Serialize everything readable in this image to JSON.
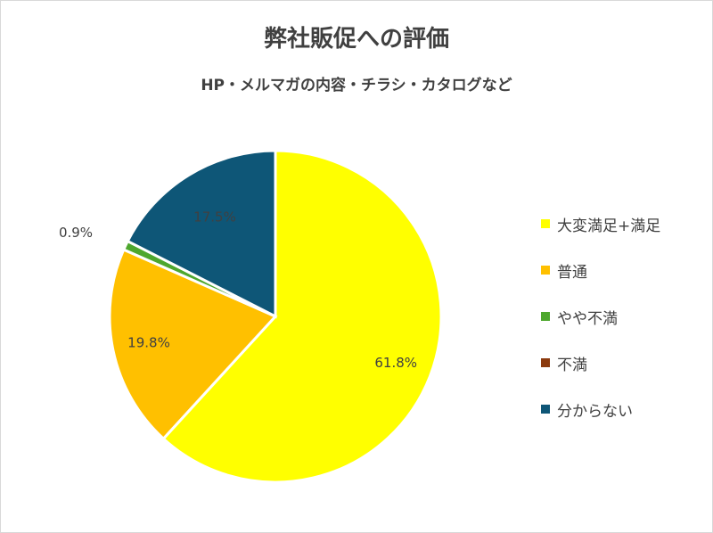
{
  "chart_data": {
    "type": "pie",
    "title": "弊社販促への評価",
    "subtitle": "HP・メルマガの内容・チラシ・カタログなど",
    "legend_position": "right",
    "slices": [
      {
        "label": "大変満足+満足",
        "value": 61.8,
        "value_label": "61.8%",
        "color": "#FFFF00"
      },
      {
        "label": "普通",
        "value": 19.8,
        "value_label": "19.8%",
        "color": "#FFC000"
      },
      {
        "label": "やや不満",
        "value": 0.9,
        "value_label": "0.9%",
        "color": "#4EA72E"
      },
      {
        "label": "不満",
        "value": 0.0,
        "value_label": "",
        "color": "#8B3A0E"
      },
      {
        "label": "分からない",
        "value": 17.5,
        "value_label": "17.5%",
        "color": "#0E5677"
      }
    ]
  }
}
